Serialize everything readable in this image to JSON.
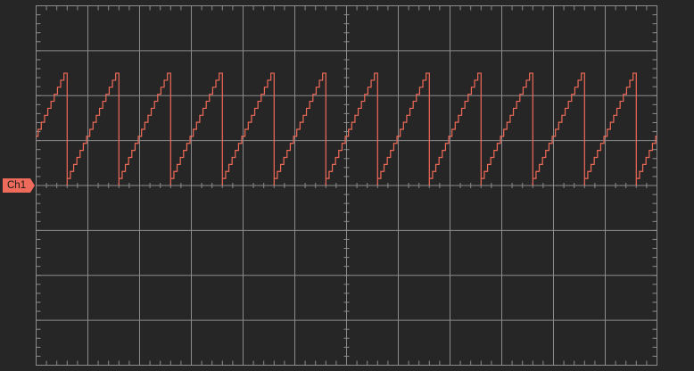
{
  "scope": {
    "background_color": "#262626",
    "graticule_color": "#8c8c8c",
    "divisions": {
      "horizontal": 12,
      "vertical": 8
    },
    "minor_ticks_per_division": 5
  },
  "channel": {
    "label": "Ch1",
    "color": "#f06a58",
    "marker_color": "#ee6a5a",
    "ground_level_div": 4
  },
  "chart_data": {
    "type": "line",
    "title": "",
    "xlabel": "",
    "ylabel": "",
    "xlim": [
      0,
      12
    ],
    "ylim": [
      -4,
      4
    ],
    "series": [
      {
        "waveform": "stepped-sawtooth",
        "cycles": 12,
        "period_div": 1.0,
        "low_level_div": 0,
        "high_level_div": 2.5,
        "start_level_div": 1.0,
        "steps_per_cycle": 16
      }
    ]
  }
}
